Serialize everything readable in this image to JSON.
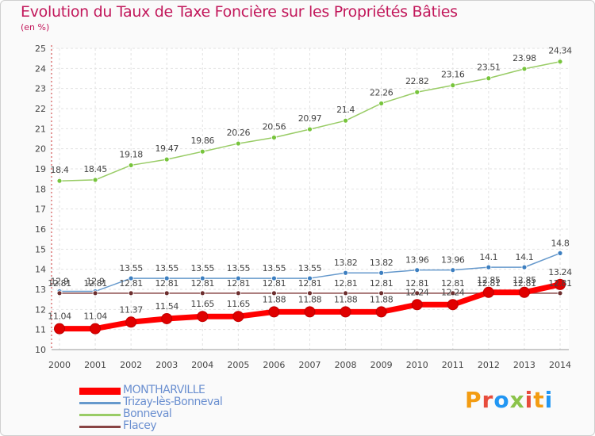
{
  "header": {
    "title": "Evolution du Taux de Taxe Foncière sur les Propriétés Bâties",
    "unit": "(en %)"
  },
  "logo": {
    "text": "Proxiti",
    "letters": [
      "P",
      "r",
      "o",
      "x",
      "i",
      "t",
      "i"
    ],
    "colors": [
      "#f39c12",
      "#e74c3c",
      "#2196f3",
      "#8bc34a",
      "#e74c3c",
      "#f39c12",
      "#2196f3"
    ]
  },
  "chart_data": {
    "type": "line",
    "title": "Evolution du Taux de Taxe Foncière sur les Propriétés Bâties",
    "ylabel": "(en %)",
    "xlabel": "",
    "ylim": [
      10,
      25
    ],
    "yticks": [
      10,
      11,
      12,
      13,
      14,
      15,
      16,
      17,
      18,
      19,
      20,
      21,
      22,
      23,
      24,
      25
    ],
    "grid": true,
    "legend_position": "bottom-left",
    "categories": [
      "2000",
      "2001",
      "2002",
      "2003",
      "2004",
      "2005",
      "2006",
      "2007",
      "2008",
      "2009",
      "2010",
      "2011",
      "2012",
      "2013",
      "2014"
    ],
    "series": [
      {
        "name": "Bonneval",
        "color": "#99cc66",
        "marker": "#77c43c",
        "values": [
          18.4,
          18.45,
          19.18,
          19.47,
          19.86,
          20.26,
          20.56,
          20.97,
          21.4,
          22.26,
          22.82,
          23.16,
          23.51,
          23.98,
          24.34
        ],
        "labels": [
          "18.4",
          "18.45",
          "19.18",
          "19.47",
          "19.86",
          "20.26",
          "20.56",
          "20.97",
          "21.4",
          "22.26",
          "22.82",
          "23.16",
          "23.51",
          "23.98",
          "24.34"
        ]
      },
      {
        "name": "Trizay-lès-Bonneval",
        "color": "#6699cc",
        "marker": "#3d7fc0",
        "values": [
          12.9,
          12.9,
          13.55,
          13.55,
          13.55,
          13.55,
          13.55,
          13.55,
          13.82,
          13.82,
          13.96,
          13.96,
          14.1,
          14.1,
          14.8
        ],
        "labels": [
          "12.9",
          "12.9",
          "13.55",
          "13.55",
          "13.55",
          "13.55",
          "13.55",
          "13.55",
          "13.82",
          "13.82",
          "13.96",
          "13.96",
          "14.1",
          "14.1",
          "14.8"
        ]
      },
      {
        "name": "Flacey",
        "color": "#884444",
        "marker": "#6d2f2f",
        "values": [
          12.81,
          12.81,
          12.81,
          12.81,
          12.81,
          12.81,
          12.81,
          12.81,
          12.81,
          12.81,
          12.81,
          12.81,
          12.81,
          12.81,
          12.81
        ],
        "labels": [
          "12.81",
          "12.81",
          "12.81",
          "12.81",
          "12.81",
          "12.81",
          "12.81",
          "12.81",
          "12.81",
          "12.81",
          "12.81",
          "12.81",
          "12.81",
          "12.81",
          "12.81"
        ]
      },
      {
        "name": "MONTHARVILLE",
        "color": "#ff0000",
        "marker": "#e00000",
        "values": [
          11.04,
          11.04,
          11.37,
          11.54,
          11.65,
          11.65,
          11.88,
          11.88,
          11.88,
          11.88,
          12.24,
          12.24,
          12.85,
          12.85,
          13.24
        ],
        "labels": [
          "11.04",
          "11.04",
          "11.37",
          "11.54",
          "11.65",
          "11.65",
          "11.88",
          "11.88",
          "11.88",
          "11.88",
          "12.24",
          "12.24",
          "12.85",
          "12.85",
          "13.24"
        ]
      }
    ],
    "legend_order": [
      "MONTHARVILLE",
      "Trizay-lès-Bonneval",
      "Bonneval",
      "Flacey"
    ]
  }
}
